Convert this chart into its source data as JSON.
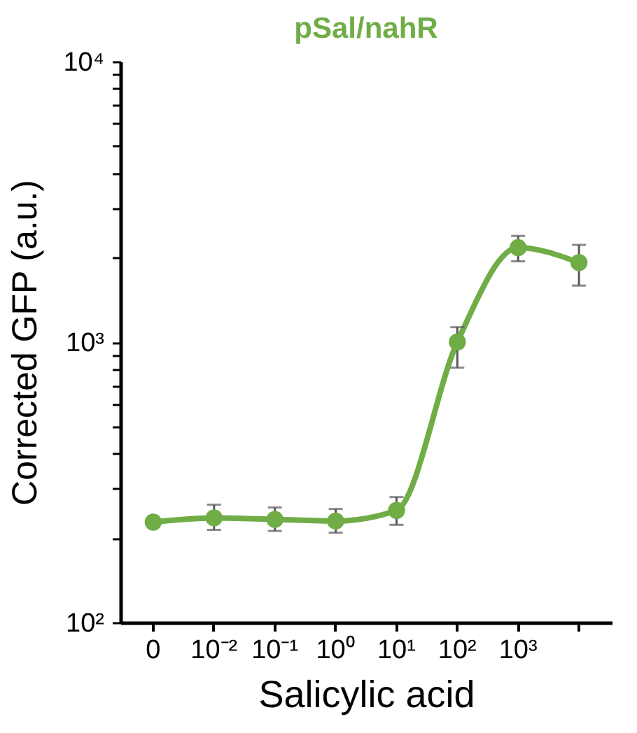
{
  "chart_data": {
    "type": "line",
    "title": "pSal/nahR",
    "xlabel": "Salicylic acid",
    "ylabel": "Corrected GFP (a.u.)",
    "categories": [
      "0",
      "10⁻²",
      "10⁻¹",
      "10⁰",
      "10¹",
      "10²",
      "10³",
      null
    ],
    "series": [
      {
        "color": "#70ad47",
        "values": [
          228,
          236,
          233,
          230,
          251,
          1000,
          2170,
          1920
        ],
        "errors": [
          null,
          [
            214,
            263
          ],
          [
            212,
            257
          ],
          [
            209,
            254
          ],
          [
            223,
            280
          ],
          [
            810,
            1130
          ],
          [
            1940,
            2390
          ],
          [
            1590,
            2220
          ]
        ]
      }
    ],
    "log": "y",
    "ylim": [
      100,
      10000
    ],
    "yticks": [
      {
        "value": 100,
        "label": "10²"
      },
      {
        "value": 200,
        "label": null
      },
      {
        "value": 300,
        "label": null
      },
      {
        "value": 400,
        "label": null
      },
      {
        "value": 500,
        "label": null
      },
      {
        "value": 600,
        "label": null
      },
      {
        "value": 700,
        "label": null
      },
      {
        "value": 800,
        "label": null
      },
      {
        "value": 900,
        "label": null
      },
      {
        "value": 1000,
        "label": "10³"
      },
      {
        "value": 2000,
        "label": null
      },
      {
        "value": 3000,
        "label": null
      },
      {
        "value": 4000,
        "label": null
      },
      {
        "value": 5000,
        "label": null
      },
      {
        "value": 6000,
        "label": null
      },
      {
        "value": 7000,
        "label": null
      },
      {
        "value": 8000,
        "label": null
      },
      {
        "value": 9000,
        "label": null
      },
      {
        "value": 10000,
        "label": "10⁴"
      }
    ],
    "marker": "circle",
    "line_style": "solid",
    "grid": false
  }
}
